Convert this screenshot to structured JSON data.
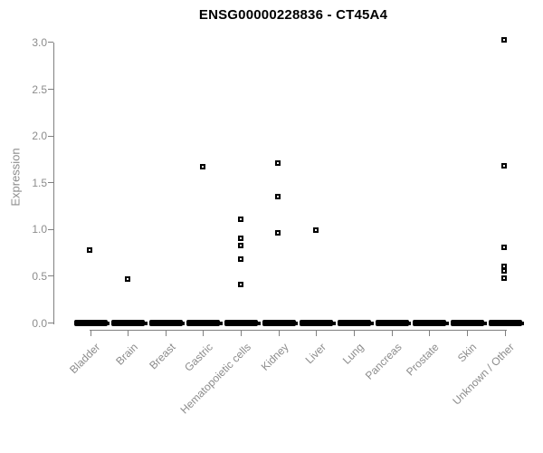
{
  "title": "ENSG00000228836 - CT45A4",
  "chart_data": {
    "type": "scatter",
    "subtype": "strip-plot-by-category",
    "title": "ENSG00000228836 - CT45A4",
    "xlabel": "",
    "ylabel": "Expression",
    "ylim": [
      0.0,
      3.1
    ],
    "yticks": [
      "0.0",
      "0.5",
      "1.0",
      "1.5",
      "2.0",
      "2.5",
      "3.0"
    ],
    "grid": "off",
    "legend": "none",
    "marker": "open-square",
    "categories": [
      "Bladder",
      "Brain",
      "Breast",
      "Gastric",
      "Hematopoietic cells",
      "Kidney",
      "Liver",
      "Lung",
      "Pancreas",
      "Prostate",
      "Skin",
      "Unknown / Other"
    ],
    "nonzero_values_by_category": [
      [
        0.78
      ],
      [
        0.47
      ],
      [],
      [
        1.67
      ],
      [
        1.11,
        0.91,
        0.83,
        0.68,
        0.41
      ],
      [
        1.71,
        1.35,
        0.96
      ],
      [
        0.99
      ],
      [],
      [],
      [],
      [],
      [
        3.03,
        1.68,
        0.81,
        0.61,
        0.56,
        0.48
      ]
    ],
    "zero_value_cluster_in_every_category": true,
    "colors": {
      "marker": "#000000",
      "axis": "#808080",
      "tick_labels": "#8c8c8c",
      "title": "#000000",
      "background": "#ffffff"
    }
  }
}
